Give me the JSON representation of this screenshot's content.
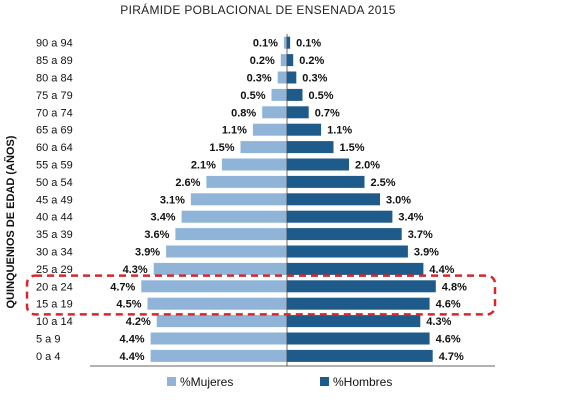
{
  "chart_data": {
    "type": "bar",
    "orientation": "horizontal",
    "title": "PIRÁMIDE POBLACIONAL DE ENSENADA 2015",
    "ylabel": "QUINQUENIOS DE EDAD (AÑOS)",
    "categories": [
      "90 a 94",
      "85 a 89",
      "80 a 84",
      "75 a 79",
      "70 a 74",
      "65 a 69",
      "60 a 64",
      "55 a 59",
      "50 a 54",
      "45 a 49",
      "40 a 44",
      "35 a 39",
      "30 a 34",
      "25 a 29",
      "20 a 24",
      "15 a 19",
      "10 a 14",
      "5 a 9",
      "0 a 4"
    ],
    "series": [
      {
        "name": "%Mujeres",
        "color": "#8fb4d8",
        "side": "left",
        "values": [
          0.1,
          0.2,
          0.3,
          0.5,
          0.8,
          1.1,
          1.5,
          2.1,
          2.6,
          3.1,
          3.4,
          3.6,
          3.9,
          4.3,
          4.7,
          4.5,
          4.2,
          4.4,
          4.4
        ],
        "labels": [
          "0.1%",
          "0.2%",
          "0.3%",
          "0.5%",
          "0.8%",
          "1.1%",
          "1.5%",
          "2.1%",
          "2.6%",
          "3.1%",
          "3.4%",
          "3.6%",
          "3.9%",
          "4.3%",
          "4.7%",
          "4.5%",
          "4.2%",
          "4.4%",
          "4.4%"
        ]
      },
      {
        "name": "%Hombres",
        "color": "#1e5a8a",
        "side": "right",
        "values": [
          0.1,
          0.2,
          0.3,
          0.5,
          0.7,
          1.1,
          1.5,
          2.0,
          2.5,
          3.0,
          3.4,
          3.7,
          3.9,
          4.4,
          4.8,
          4.6,
          4.3,
          4.6,
          4.7
        ],
        "labels": [
          "0.1%",
          "0.2%",
          "0.3%",
          "0.5%",
          "0.7%",
          "1.1%",
          "1.5%",
          "2.0%",
          "2.5%",
          "3.0%",
          "3.4%",
          "3.7%",
          "3.9%",
          "4.4%",
          "4.8%",
          "4.6%",
          "4.3%",
          "4.6%",
          "4.7%"
        ]
      }
    ],
    "highlight": {
      "categories": [
        "20 a 24",
        "15 a 19"
      ],
      "style": "dashed-box",
      "color": "#d9262c"
    },
    "legend": "bottom",
    "grid": false
  }
}
